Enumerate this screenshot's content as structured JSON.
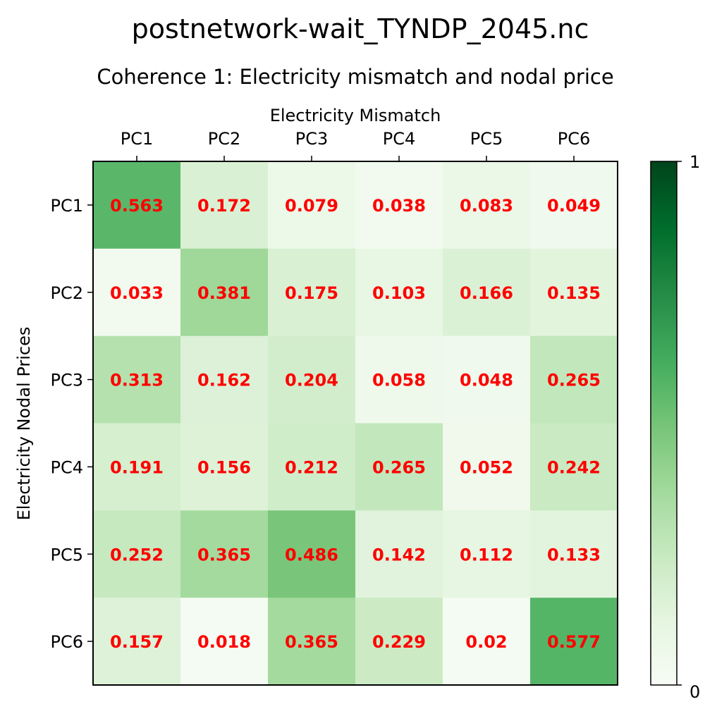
{
  "chart_data": {
    "type": "heatmap",
    "suptitle": "postnetwork-wait_TYNDP_2045.nc",
    "title": "Coherence 1: Electricity mismatch and nodal price",
    "xlabel": "Electricity Mismatch",
    "ylabel": "Electricity Nodal Prices",
    "x_categories": [
      "PC1",
      "PC2",
      "PC3",
      "PC4",
      "PC5",
      "PC6"
    ],
    "y_categories": [
      "PC1",
      "PC2",
      "PC3",
      "PC4",
      "PC5",
      "PC6"
    ],
    "values": [
      [
        0.563,
        0.172,
        0.079,
        0.038,
        0.083,
        0.049
      ],
      [
        0.033,
        0.381,
        0.175,
        0.103,
        0.166,
        0.135
      ],
      [
        0.313,
        0.162,
        0.204,
        0.058,
        0.048,
        0.265
      ],
      [
        0.191,
        0.156,
        0.212,
        0.265,
        0.052,
        0.242
      ],
      [
        0.252,
        0.365,
        0.486,
        0.142,
        0.112,
        0.133
      ],
      [
        0.157,
        0.018,
        0.365,
        0.229,
        0.02,
        0.577
      ]
    ],
    "colormap": "Greens",
    "vmin": 0,
    "vmax": 1,
    "colorbar_ticks": [
      "0",
      "1"
    ],
    "annotation_color": "#ff0000",
    "x_axis_position": "top",
    "legend": "colorbar-right"
  }
}
